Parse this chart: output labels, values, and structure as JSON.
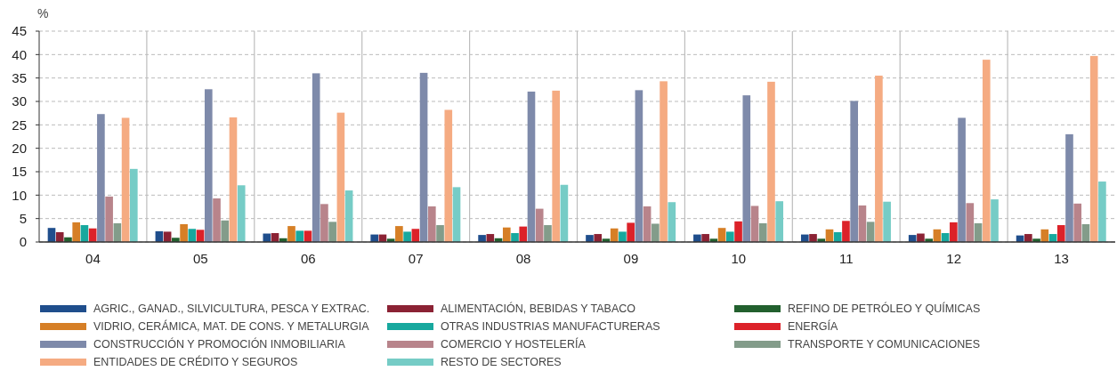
{
  "chart_data": {
    "type": "bar",
    "ylabel": "%",
    "categories": [
      "04",
      "05",
      "06",
      "07",
      "08",
      "09",
      "10",
      "11",
      "12",
      "13"
    ],
    "series": [
      {
        "name": "AGRIC., GANAD., SILVICULTURA, PESCA Y EXTRAC.",
        "color": "#1f4e8c",
        "values": [
          3.0,
          2.3,
          1.8,
          1.6,
          1.5,
          1.5,
          1.6,
          1.6,
          1.5,
          1.4
        ]
      },
      {
        "name": "ALIMENTACIÓN, BEBIDAS Y TABACO",
        "color": "#8b2234",
        "values": [
          2.1,
          2.2,
          1.9,
          1.6,
          1.7,
          1.7,
          1.7,
          1.7,
          1.8,
          1.7
        ]
      },
      {
        "name": "REFINO DE PETRÓLEO Y QUÍMICAS",
        "color": "#22602e",
        "values": [
          1.0,
          0.9,
          0.8,
          0.7,
          0.8,
          0.7,
          0.7,
          0.7,
          0.7,
          0.7
        ]
      },
      {
        "name": "VIDRIO, CERÁMICA, MAT. DE CONS. Y METALURGIA",
        "color": "#d67f26",
        "values": [
          4.2,
          3.8,
          3.4,
          3.4,
          3.1,
          2.9,
          3.0,
          2.7,
          2.7,
          2.7
        ]
      },
      {
        "name": "OTRAS INDUSTRIAS MANUFACTURERAS",
        "color": "#17a89e",
        "values": [
          3.6,
          2.8,
          2.4,
          2.2,
          1.9,
          2.2,
          2.2,
          2.1,
          1.9,
          1.7
        ]
      },
      {
        "name": "ENERGÍA",
        "color": "#dc2229",
        "values": [
          2.9,
          2.6,
          2.4,
          2.8,
          3.3,
          4.1,
          4.4,
          4.5,
          4.2,
          3.6
        ]
      },
      {
        "name": "CONSTRUCCIÓN Y PROMOCIÓN INMOBILIARIA",
        "color": "#7e8aaa",
        "values": [
          27.3,
          32.6,
          36.0,
          36.1,
          32.1,
          32.4,
          31.3,
          30.1,
          26.5,
          23.0
        ]
      },
      {
        "name": "COMERCIO Y HOSTELERÍA",
        "color": "#b8848b",
        "values": [
          9.7,
          9.3,
          8.1,
          7.6,
          7.1,
          7.6,
          7.7,
          7.8,
          8.3,
          8.2
        ]
      },
      {
        "name": "TRANSPORTE Y COMUNICACIONES",
        "color": "#839c8a",
        "values": [
          4.0,
          4.6,
          4.3,
          3.6,
          3.6,
          3.9,
          4.0,
          4.3,
          4.0,
          3.8
        ]
      },
      {
        "name": "ENTIDADES DE CRÉDITO Y SEGUROS",
        "color": "#f5ab82",
        "values": [
          26.5,
          26.6,
          27.6,
          28.2,
          32.3,
          34.3,
          34.2,
          35.5,
          38.9,
          39.7
        ]
      },
      {
        "name": "RESTO DE SECTORES",
        "color": "#76ccc6",
        "values": [
          15.6,
          12.1,
          11.0,
          11.7,
          12.2,
          8.5,
          8.7,
          8.6,
          9.1,
          12.9
        ]
      }
    ],
    "ylim": [
      0,
      45
    ],
    "yticks": [
      0,
      5,
      10,
      15,
      20,
      25,
      30,
      35,
      40,
      45
    ],
    "grid": "y",
    "legend": "bottom"
  }
}
